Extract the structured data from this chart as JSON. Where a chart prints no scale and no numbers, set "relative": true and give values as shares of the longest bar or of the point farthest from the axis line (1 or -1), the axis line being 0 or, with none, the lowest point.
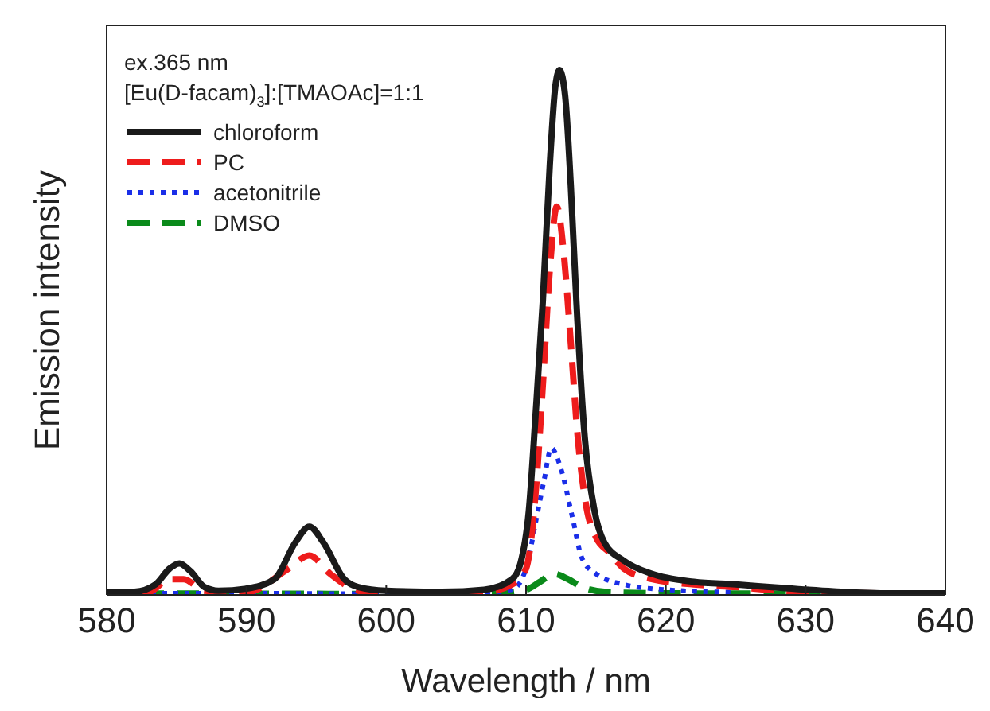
{
  "chart_data": {
    "type": "line",
    "xlabel": "Wavelength / nm",
    "ylabel": "Emission intensity",
    "relative": true,
    "xlim": [
      580,
      640
    ],
    "xticks": [
      580,
      590,
      600,
      610,
      620,
      630,
      640
    ],
    "legend": "top left",
    "annotations": [
      "ex.365 nm",
      "[Eu(D-facam)$_{3}$]:[TMAOAc]=1:1"
    ],
    "series": [
      {
        "name": "chloroform",
        "color": "#1a1a1a",
        "line_style": "solid",
        "x": [
          580,
          582,
          583.5,
          584.5,
          585.2,
          586,
          587,
          588,
          590,
          592,
          593.5,
          594.5,
          595.5,
          597,
          598,
          600,
          604,
          607,
          609,
          609.6,
          610.2,
          610.7,
          611.2,
          611.7,
          612.1,
          612.4,
          612.8,
          613.2,
          613.6,
          614.2,
          614.9,
          615.6,
          617,
          619,
          622,
          625,
          628,
          632,
          636,
          640
        ],
        "values": [
          0.005,
          0.006,
          0.02,
          0.05,
          0.06,
          0.045,
          0.015,
          0.008,
          0.012,
          0.03,
          0.1,
          0.13,
          0.1,
          0.03,
          0.015,
          0.008,
          0.006,
          0.01,
          0.03,
          0.06,
          0.16,
          0.35,
          0.56,
          0.82,
          0.97,
          1.0,
          0.95,
          0.78,
          0.56,
          0.3,
          0.16,
          0.1,
          0.065,
          0.04,
          0.025,
          0.02,
          0.014,
          0.007,
          0.003,
          0.003
        ]
      },
      {
        "name": "PC",
        "color": "#ee1c1c",
        "line_style": "dashed",
        "x": [
          580,
          583,
          584.5,
          585.5,
          587,
          590,
          593,
          594.5,
          596,
          598,
          600,
          607,
          609,
          610,
          610.7,
          611.2,
          611.7,
          612.2,
          612.7,
          613.2,
          613.7,
          614.3,
          615,
          616,
          617,
          619,
          622,
          625,
          630,
          640
        ],
        "values": [
          0.0,
          0.005,
          0.03,
          0.03,
          0.008,
          0.005,
          0.05,
          0.075,
          0.04,
          0.008,
          0.003,
          0.005,
          0.02,
          0.05,
          0.2,
          0.4,
          0.62,
          0.74,
          0.65,
          0.48,
          0.3,
          0.17,
          0.11,
          0.08,
          0.05,
          0.03,
          0.02,
          0.015,
          0.005,
          0.002
        ]
      },
      {
        "name": "acetonitrile",
        "color": "#1a2ee8",
        "line_style": "dotted",
        "x": [
          580,
          590,
          600,
          607,
          609,
          610,
          610.7,
          611.3,
          611.8,
          612.5,
          613.3,
          614,
          615,
          617,
          620,
          625
        ],
        "values": [
          0.003,
          0.003,
          0.002,
          0.004,
          0.01,
          0.05,
          0.14,
          0.22,
          0.28,
          0.24,
          0.15,
          0.07,
          0.04,
          0.02,
          0.01,
          0.005
        ]
      },
      {
        "name": "DMSO",
        "color": "#0a8a1a",
        "line_style": "dashed",
        "x": [
          580,
          600,
          608,
          610,
          611,
          612,
          613,
          614,
          616,
          620,
          640
        ],
        "values": [
          0.003,
          0.002,
          0.004,
          0.01,
          0.025,
          0.04,
          0.03,
          0.015,
          0.005,
          0.003,
          0.002
        ]
      }
    ]
  }
}
